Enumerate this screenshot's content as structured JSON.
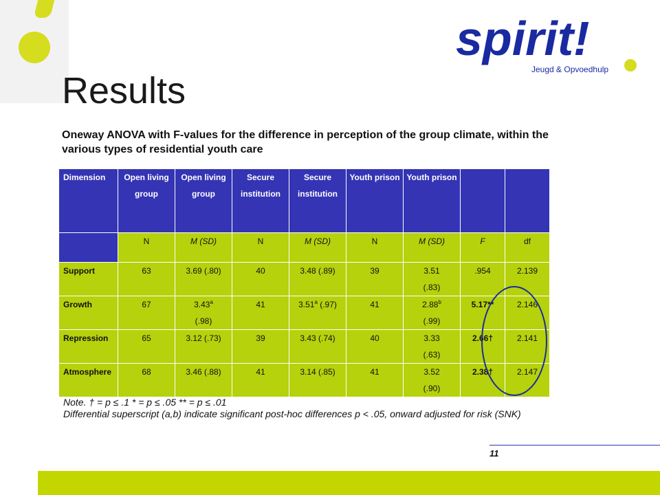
{
  "slide": {
    "title": "Results",
    "subtitle": "Oneway ANOVA with F-values for the difference in perception of the group climate, within the various types of residential youth care",
    "page_number": "11",
    "colors": {
      "header_blue": "#3434b4",
      "lime": "#b5d20c",
      "logo_navy": "#1a2aa0",
      "accent_yellow": "#d6dc1e"
    }
  },
  "logo": {
    "word": "spirit!",
    "tagline": "Jeugd & Opvoedhulp"
  },
  "table": {
    "header": [
      "Dimension",
      "Open living group",
      "Open living group",
      "Secure institution",
      "Secure institution",
      "Youth prison",
      "Youth prison",
      "",
      ""
    ],
    "subheader": [
      "",
      "N",
      "M (SD)",
      "N",
      "M (SD)",
      "N",
      "M (SD)",
      "F",
      "df"
    ],
    "rows": [
      {
        "dimension": "Support",
        "n1": "63",
        "m1": "3.69 (.80)",
        "m1_sup": "",
        "m1_b": "",
        "n2": "40",
        "m2": "3.48 (.89)",
        "m2_sup": "",
        "m2_b": "",
        "n3": "39",
        "m3": "3.51",
        "m3_sup": "",
        "m3_b": "(.83)",
        "f": ".954",
        "df": "2.139"
      },
      {
        "dimension": "Growth",
        "n1": "67",
        "m1": "3.43",
        "m1_sup": "a",
        "m1_b": "(.98)",
        "n2": "41",
        "m2": "3.51",
        "m2_sup": "a",
        "m2_b": " (.97)",
        "n3": "41",
        "m3": "2.88",
        "m3_sup": "b",
        "m3_b": "(.99)",
        "f": "5.17**",
        "df": "2.146"
      },
      {
        "dimension": "Repression",
        "n1": "65",
        "m1": "3.12 (.73)",
        "m1_sup": "",
        "m1_b": "",
        "n2": "39",
        "m2": "3.43 (.74)",
        "m2_sup": "",
        "m2_b": "",
        "n3": "40",
        "m3": "3.33",
        "m3_sup": "",
        "m3_b": "(.63)",
        "f": "2.66†",
        "df": "2.141"
      },
      {
        "dimension": "Atmosphere",
        "n1": "68",
        "m1": "3.46 (.88)",
        "m1_sup": "",
        "m1_b": "",
        "n2": "41",
        "m2": "3.14 (.85)",
        "m2_sup": "",
        "m2_b": "",
        "n3": "41",
        "m3": "3.52",
        "m3_sup": "",
        "m3_b": "(.90)",
        "f": "2.38†",
        "df": "2.147"
      }
    ]
  },
  "note": {
    "line1": "Note. † = p ≤ .1   * = p ≤ .05   ** = p ≤ .01",
    "line2": "Differential superscript (a,b) indicate significant post-hoc differences p < .05, onward adjusted for risk (SNK)"
  }
}
